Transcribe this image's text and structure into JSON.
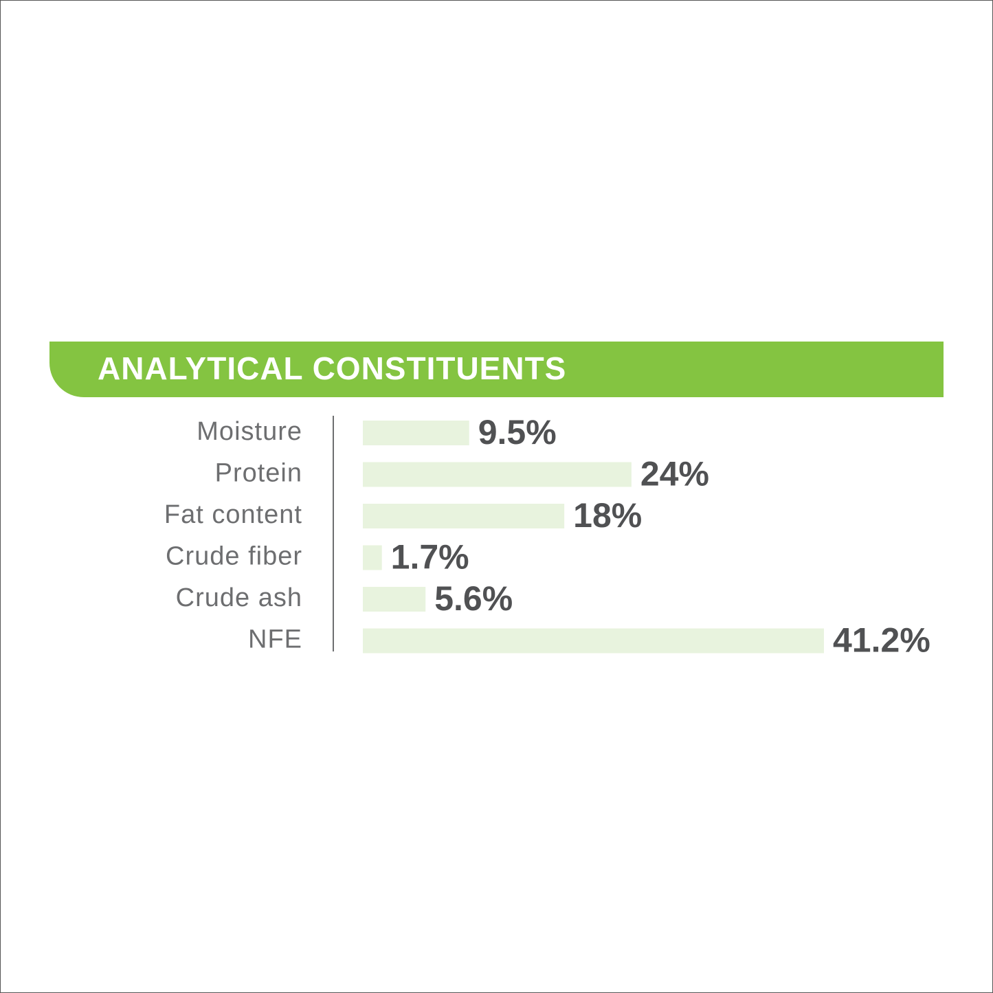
{
  "chart_data": {
    "type": "bar",
    "title": "ANALYTICAL CONSTITUENTS",
    "categories": [
      "Moisture",
      "Protein",
      "Fat content",
      "Crude fiber",
      "Crude ash",
      "NFE"
    ],
    "values": [
      9.5,
      24,
      18,
      1.7,
      5.6,
      41.2
    ],
    "value_labels": [
      "9.5%",
      "24%",
      "18%",
      "1.7%",
      "5.6%",
      "41.2%"
    ],
    "color": "#e8f3de"
  }
}
